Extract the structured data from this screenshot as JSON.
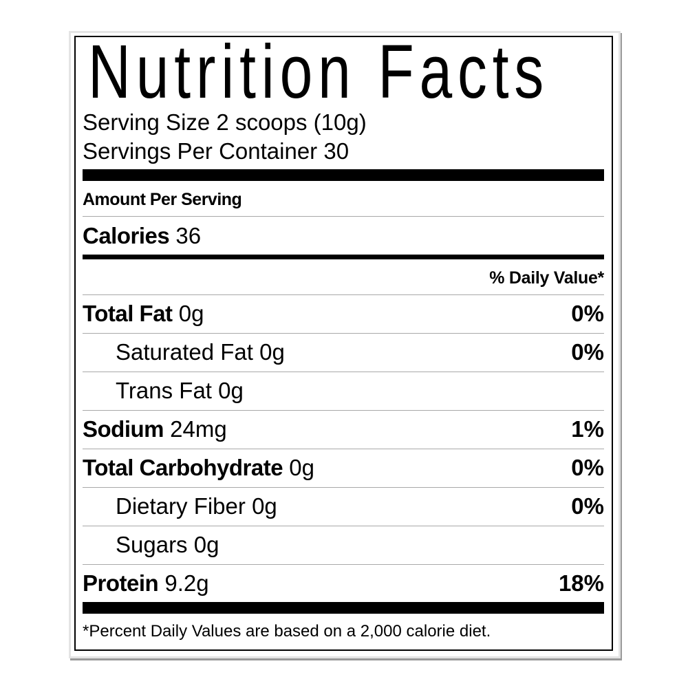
{
  "title": "Nutrition Facts",
  "serving_size": "Serving Size 2 scoops (10g)",
  "servings_per_container": "Servings Per Container 30",
  "amount_per_serving": "Amount Per Serving",
  "calories": {
    "label": "Calories",
    "value": "36"
  },
  "daily_value_header": "% Daily Value*",
  "nutrients": [
    {
      "name": "Total Fat",
      "amount": "0g",
      "dv": "0%",
      "bold": true
    },
    {
      "name": "Saturated Fat",
      "amount": "0g",
      "dv": "0%",
      "bold": false
    },
    {
      "name": "Trans Fat",
      "amount": "0g",
      "dv": "",
      "bold": false
    },
    {
      "name": "Sodium",
      "amount": "24mg",
      "dv": "1%",
      "bold": true
    },
    {
      "name": "Total Carbohydrate",
      "amount": "0g",
      "dv": "0%",
      "bold": true
    },
    {
      "name": "Dietary Fiber",
      "amount": "0g",
      "dv": "0%",
      "bold": false
    },
    {
      "name": "Sugars",
      "amount": "0g",
      "dv": "",
      "bold": false
    },
    {
      "name": "Protein",
      "amount": "9.2g",
      "dv": "18%",
      "bold": true
    }
  ],
  "footnote": "*Percent Daily Values are based on a 2,000 calorie diet."
}
